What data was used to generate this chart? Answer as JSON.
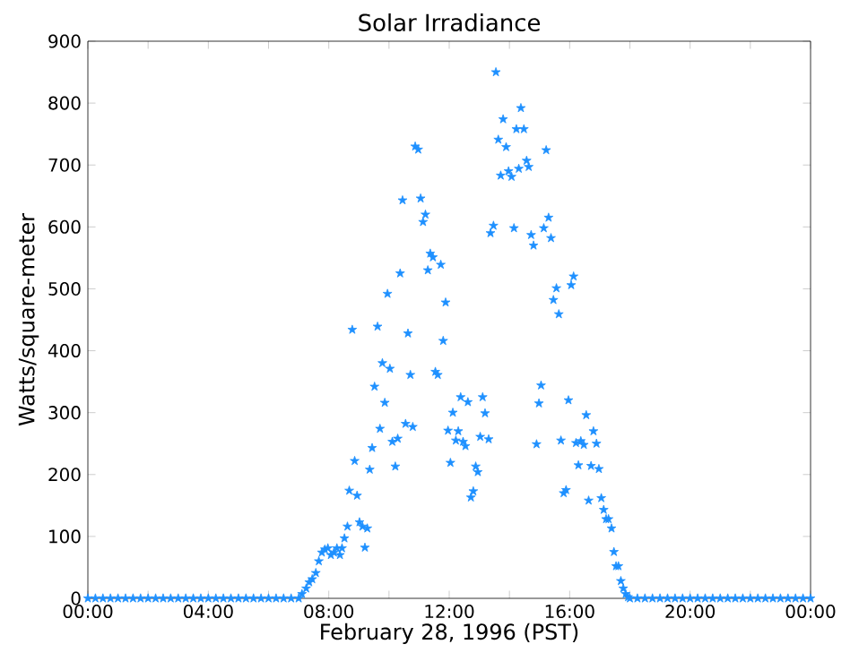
{
  "chart_data": {
    "type": "scatter",
    "title": "Solar Irradiance",
    "xlabel": "February 28, 1996 (PST)",
    "ylabel": "Watts/square-meter",
    "marker": "star",
    "grid": false,
    "xlim": [
      0,
      24
    ],
    "ylim": [
      0,
      900
    ],
    "xticks": [
      {
        "value": 0,
        "label": "00:00"
      },
      {
        "value": 2,
        "label": null
      },
      {
        "value": 4,
        "label": "04:00"
      },
      {
        "value": 6,
        "label": null
      },
      {
        "value": 8,
        "label": "08:00"
      },
      {
        "value": 10,
        "label": null
      },
      {
        "value": 12,
        "label": "12:00"
      },
      {
        "value": 14,
        "label": null
      },
      {
        "value": 16,
        "label": "16:00"
      },
      {
        "value": 18,
        "label": null
      },
      {
        "value": 20,
        "label": "20:00"
      },
      {
        "value": 22,
        "label": null
      },
      {
        "value": 24,
        "label": "00:00"
      }
    ],
    "yticks": [
      0,
      100,
      200,
      300,
      400,
      500,
      600,
      700,
      800,
      900
    ],
    "series": [
      {
        "color": "#1e90ff",
        "x": [
          0,
          0.25,
          0.5,
          0.75,
          1,
          1.25,
          1.5,
          1.75,
          2,
          2.25,
          2.5,
          2.75,
          3,
          3.25,
          3.5,
          3.75,
          4,
          4.25,
          4.5,
          4.75,
          5,
          5.25,
          5.5,
          5.75,
          6,
          6.25,
          6.5,
          6.75,
          7,
          7.11,
          7.25,
          7.35,
          7.45,
          7.57,
          7.67,
          7.77,
          7.87,
          7.97,
          8.07,
          8.17,
          8.27,
          8.37,
          8.44,
          8.52,
          8.62,
          8.68,
          8.78,
          8.86,
          8.94,
          9.02,
          9.12,
          9.2,
          9.28,
          9.36,
          9.44,
          9.52,
          9.62,
          9.7,
          9.78,
          9.86,
          9.95,
          10.03,
          10.11,
          10.21,
          10.29,
          10.37,
          10.45,
          10.55,
          10.63,
          10.71,
          10.79,
          10.87,
          10.97,
          11.05,
          11.13,
          11.21,
          11.29,
          11.37,
          11.46,
          11.54,
          11.62,
          11.72,
          11.8,
          11.88,
          11.96,
          12.04,
          12.12,
          12.22,
          12.3,
          12.38,
          12.46,
          12.54,
          12.62,
          12.72,
          12.8,
          12.88,
          12.95,
          13.03,
          13.11,
          13.19,
          13.31,
          13.37,
          13.47,
          13.55,
          13.63,
          13.71,
          13.79,
          13.89,
          13.97,
          14.07,
          14.15,
          14.23,
          14.31,
          14.38,
          14.48,
          14.57,
          14.64,
          14.72,
          14.8,
          14.9,
          14.98,
          15.05,
          15.14,
          15.22,
          15.3,
          15.38,
          15.46,
          15.56,
          15.64,
          15.71,
          15.8,
          15.88,
          15.96,
          16.05,
          16.13,
          16.21,
          16.29,
          16.37,
          16.47,
          16.55,
          16.63,
          16.71,
          16.79,
          16.89,
          16.97,
          17.05,
          17.13,
          17.21,
          17.29,
          17.39,
          17.47,
          17.54,
          17.62,
          17.7,
          17.78,
          17.86,
          17.94,
          18,
          18.25,
          18.5,
          18.75,
          19,
          19.25,
          19.5,
          19.75,
          20,
          20.25,
          20.5,
          20.75,
          21,
          21.25,
          21.5,
          21.75,
          22,
          22.25,
          22.5,
          22.75,
          23,
          23.25,
          23.5,
          23.75,
          24
        ],
        "values": [
          0,
          0,
          0,
          0,
          0,
          0,
          0,
          0,
          0,
          0,
          0,
          0,
          0,
          0,
          0,
          0,
          0,
          0,
          0,
          0,
          0,
          0,
          0,
          0,
          0,
          0,
          0,
          0,
          0,
          7,
          16,
          26,
          31,
          41,
          60,
          74,
          79,
          81,
          70,
          74,
          81,
          70,
          81,
          97,
          116,
          174,
          434,
          222,
          166,
          123,
          116,
          82,
          113,
          208,
          243,
          342,
          439,
          274,
          380,
          316,
          492,
          371,
          253,
          213,
          258,
          525,
          643,
          282,
          428,
          361,
          277,
          730,
          725,
          646,
          608,
          620,
          530,
          557,
          551,
          366,
          361,
          539,
          416,
          478,
          271,
          219,
          300,
          255,
          270,
          325,
          253,
          246,
          317,
          163,
          173,
          213,
          204,
          261,
          325,
          299,
          257,
          590,
          602,
          850,
          741,
          683,
          774,
          729,
          690,
          681,
          598,
          758,
          694,
          792,
          758,
          707,
          697,
          587,
          570,
          249,
          315,
          344,
          598,
          724,
          615,
          582,
          482,
          501,
          459,
          255,
          170,
          175,
          320,
          506,
          520,
          251,
          215,
          254,
          248,
          296,
          158,
          214,
          270,
          250,
          209,
          162,
          143,
          128,
          128,
          113,
          75,
          52,
          52,
          28,
          16,
          7,
          2,
          0,
          0,
          0,
          0,
          0,
          0,
          0,
          0,
          0,
          0,
          0,
          0,
          0,
          0,
          0,
          0,
          0,
          0,
          0,
          0,
          0,
          0,
          0,
          0,
          0
        ]
      }
    ]
  }
}
